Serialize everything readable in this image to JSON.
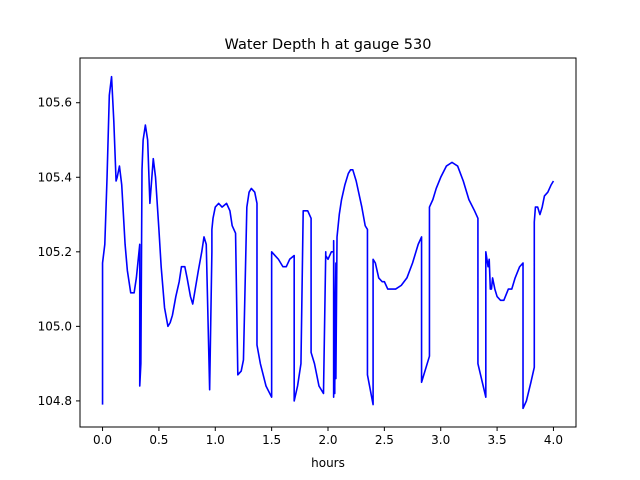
{
  "chart_data": {
    "type": "line",
    "title": "Water Depth h at gauge 530",
    "xlabel": "hours",
    "ylabel": "",
    "xlim": [
      -0.2,
      4.2
    ],
    "ylim": [
      104.73,
      105.72
    ],
    "xticks": [
      0.0,
      0.5,
      1.0,
      1.5,
      2.0,
      2.5,
      3.0,
      3.5,
      4.0
    ],
    "xtick_labels": [
      "0.0",
      "0.5",
      "1.0",
      "1.5",
      "2.0",
      "2.5",
      "3.0",
      "3.5",
      "4.0"
    ],
    "yticks": [
      104.8,
      105.0,
      105.2,
      105.4,
      105.6
    ],
    "ytick_labels": [
      "104.8",
      "105.0",
      "105.2",
      "105.4",
      "105.6"
    ],
    "grid": false,
    "series": [
      {
        "color": "#0000ff",
        "x": [
          0.0,
          0.0,
          0.02,
          0.04,
          0.06,
          0.08,
          0.1,
          0.12,
          0.13,
          0.15,
          0.17,
          0.2,
          0.22,
          0.25,
          0.28,
          0.3,
          0.33,
          0.33,
          0.34,
          0.35,
          0.36,
          0.38,
          0.4,
          0.42,
          0.45,
          0.47,
          0.5,
          0.52,
          0.55,
          0.58,
          0.6,
          0.62,
          0.65,
          0.68,
          0.7,
          0.73,
          0.75,
          0.78,
          0.8,
          0.85,
          0.88,
          0.9,
          0.92,
          0.95,
          0.97,
          0.97,
          0.98,
          1.0,
          1.03,
          1.06,
          1.1,
          1.13,
          1.15,
          1.18,
          1.2,
          1.2,
          1.23,
          1.25,
          1.28,
          1.3,
          1.32,
          1.35,
          1.37,
          1.37,
          1.4,
          1.45,
          1.5,
          1.5,
          1.53,
          1.56,
          1.6,
          1.63,
          1.66,
          1.7,
          1.7,
          1.73,
          1.76,
          1.78,
          1.82,
          1.85,
          1.85,
          1.88,
          1.92,
          1.96,
          1.98,
          1.98,
          2.0,
          2.03,
          2.05,
          2.05,
          2.05,
          2.06,
          2.06,
          2.07,
          2.07,
          2.08,
          2.1,
          2.12,
          2.15,
          2.18,
          2.2,
          2.22,
          2.25,
          2.3,
          2.33,
          2.35,
          2.35,
          2.4,
          2.4,
          2.42,
          2.45,
          2.48,
          2.5,
          2.53,
          2.56,
          2.6,
          2.65,
          2.7,
          2.75,
          2.8,
          2.83,
          2.83,
          2.9,
          2.9,
          2.93,
          2.96,
          3.0,
          3.05,
          3.1,
          3.15,
          3.2,
          3.25,
          3.3,
          3.33,
          3.33,
          3.4,
          3.4,
          3.42,
          3.43,
          3.44,
          3.45,
          3.46,
          3.48,
          3.5,
          3.53,
          3.56,
          3.6,
          3.63,
          3.66,
          3.7,
          3.73,
          3.73,
          3.76,
          3.8,
          3.83,
          3.83,
          3.84,
          3.86,
          3.88,
          3.9,
          3.92,
          3.95,
          3.98,
          4.0
        ],
        "y": [
          104.79,
          105.17,
          105.22,
          105.4,
          105.62,
          105.67,
          105.55,
          105.39,
          105.4,
          105.43,
          105.38,
          105.22,
          105.15,
          105.09,
          105.09,
          105.13,
          105.22,
          104.84,
          104.9,
          105.42,
          105.5,
          105.54,
          105.5,
          105.33,
          105.45,
          105.4,
          105.26,
          105.16,
          105.05,
          105.0,
          105.01,
          105.03,
          105.08,
          105.12,
          105.16,
          105.16,
          105.13,
          105.08,
          105.06,
          105.15,
          105.2,
          105.24,
          105.22,
          104.83,
          105.2,
          105.26,
          105.29,
          105.32,
          105.33,
          105.32,
          105.33,
          105.31,
          105.27,
          105.25,
          104.87,
          104.87,
          104.88,
          104.91,
          105.32,
          105.36,
          105.37,
          105.36,
          105.33,
          104.95,
          104.9,
          104.84,
          104.81,
          105.2,
          105.19,
          105.18,
          105.16,
          105.16,
          105.18,
          105.19,
          104.8,
          104.84,
          104.9,
          105.31,
          105.31,
          105.29,
          104.93,
          104.9,
          104.84,
          104.82,
          105.2,
          105.19,
          105.18,
          105.2,
          105.2,
          104.81,
          105.23,
          104.82,
          104.84,
          105.17,
          104.86,
          105.24,
          105.3,
          105.34,
          105.38,
          105.41,
          105.42,
          105.42,
          105.39,
          105.32,
          105.27,
          105.26,
          104.87,
          104.79,
          105.18,
          105.17,
          105.13,
          105.12,
          105.12,
          105.1,
          105.1,
          105.1,
          105.11,
          105.13,
          105.17,
          105.22,
          105.24,
          104.85,
          104.92,
          105.32,
          105.34,
          105.37,
          105.4,
          105.43,
          105.44,
          105.43,
          105.39,
          105.34,
          105.31,
          105.29,
          104.9,
          104.81,
          105.2,
          105.16,
          105.18,
          105.1,
          105.1,
          105.13,
          105.1,
          105.08,
          105.07,
          105.07,
          105.1,
          105.1,
          105.13,
          105.16,
          105.17,
          104.78,
          104.8,
          104.85,
          104.89,
          105.28,
          105.32,
          105.32,
          105.3,
          105.32,
          105.35,
          105.36,
          105.38,
          105.39
        ]
      }
    ]
  }
}
